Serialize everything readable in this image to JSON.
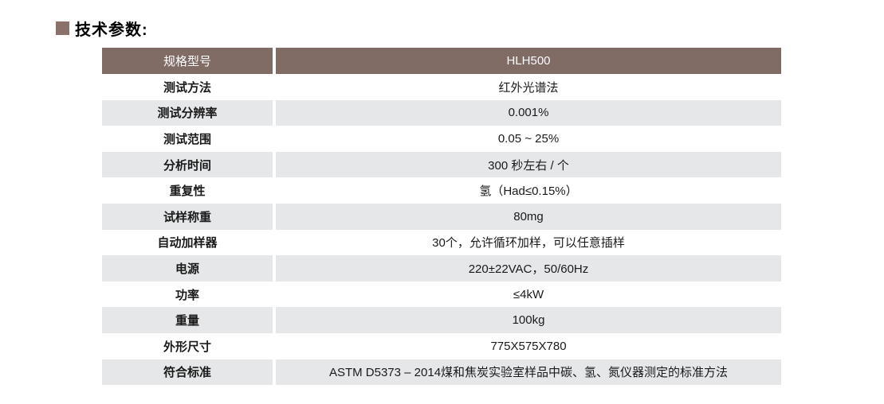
{
  "page": {
    "title": "技术参数:"
  },
  "table": {
    "header": {
      "param": "规格型号",
      "value": "HLH500"
    },
    "rows": [
      {
        "param": "测试方法",
        "value": "红外光谱法"
      },
      {
        "param": "测试分辨率",
        "value": "0.001%"
      },
      {
        "param": "测试范围",
        "value": "0.05 ~ 25%"
      },
      {
        "param": "分析时间",
        "value": "300 秒左右 / 个"
      },
      {
        "param": "重复性",
        "value": "氢（Had≤0.15%）"
      },
      {
        "param": "试样称重",
        "value": "80mg"
      },
      {
        "param": "自动加样器",
        "value": "30个，允许循环加样，可以任意插样"
      },
      {
        "param": "电源",
        "value": "220±22VAC，50/60Hz"
      },
      {
        "param": "功率",
        "value": "≤4kW"
      },
      {
        "param": "重量",
        "value": "100kg"
      },
      {
        "param": "外形尺寸",
        "value": "775X575X780"
      },
      {
        "param": "符合标准",
        "value": "ASTM D5373 – 2014煤和焦炭实验室样品中碳、氢、氮仪器测定的标准方法"
      }
    ],
    "colors": {
      "header_bg": "#806B65",
      "stripe_bg": "#E5E7E9",
      "header_text": "#FFFFFF",
      "body_text": "#1A1A1A",
      "accent": "#8A7169"
    }
  }
}
